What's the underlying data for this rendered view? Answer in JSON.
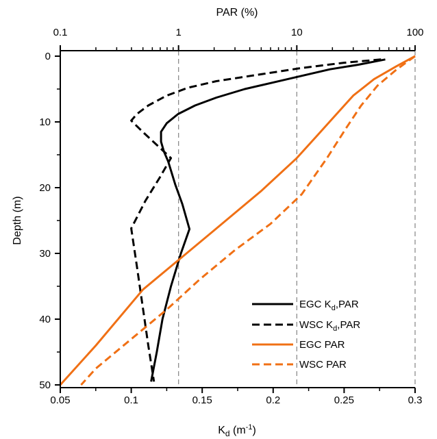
{
  "chart_data": {
    "type": "line",
    "top_axis": {
      "label": "PAR (%)",
      "scale": "log",
      "range": [
        0.1,
        100
      ],
      "ticks": [
        0.1,
        1,
        10,
        100
      ],
      "tick_labels": [
        "0.1",
        "1",
        "10",
        "100"
      ]
    },
    "bottom_axis": {
      "label_main": "K",
      "label_sub": "d",
      "label_rest": " (m",
      "label_sup": "-1",
      "label_end": ")",
      "range": [
        0.05,
        0.3
      ],
      "ticks": [
        0.05,
        0.1,
        0.15,
        0.2,
        0.25,
        0.3
      ],
      "tick_labels": [
        "0.05",
        "0.1",
        "0.15",
        "0.2",
        "0.25",
        "0.3"
      ]
    },
    "y_axis": {
      "label": "Depth (m)",
      "range": [
        0,
        50
      ],
      "inverted": true,
      "ticks": [
        0,
        10,
        20,
        30,
        40,
        50
      ],
      "tick_labels": [
        "0",
        "10",
        "20",
        "30",
        "40",
        "50"
      ]
    },
    "grid": "vertical dashed at PAR 1, 10, 100",
    "legend_position": "bottom-right",
    "series": [
      {
        "name": "EGC Kd,PAR",
        "legend_main": "EGC K",
        "legend_sub": "d",
        "legend_rest": ",PAR",
        "axis": "bottom",
        "color": "#000000",
        "dash": "solid",
        "points": [
          [
            0.279,
            0.5
          ],
          [
            0.26,
            1.3
          ],
          [
            0.24,
            2
          ],
          [
            0.22,
            3
          ],
          [
            0.2,
            4
          ],
          [
            0.18,
            5
          ],
          [
            0.16,
            6.3
          ],
          [
            0.145,
            7.5
          ],
          [
            0.133,
            8.8
          ],
          [
            0.125,
            10.2
          ],
          [
            0.121,
            11.5
          ],
          [
            0.121,
            13
          ],
          [
            0.123,
            14.5
          ],
          [
            0.126,
            16
          ],
          [
            0.131,
            19.5
          ],
          [
            0.136,
            22.5
          ],
          [
            0.141,
            26.3
          ],
          [
            0.135,
            30
          ],
          [
            0.128,
            35
          ],
          [
            0.122,
            40
          ],
          [
            0.118,
            45
          ],
          [
            0.114,
            49.5
          ]
        ]
      },
      {
        "name": "WSC Kd,PAR",
        "legend_main": "WSC K",
        "legend_sub": "d",
        "legend_rest": ",PAR",
        "axis": "bottom",
        "color": "#000000",
        "dash": "dashed",
        "points": [
          [
            0.276,
            0.5
          ],
          [
            0.25,
            1
          ],
          [
            0.22,
            1.8
          ],
          [
            0.19,
            2.8
          ],
          [
            0.16,
            3.8
          ],
          [
            0.14,
            4.8
          ],
          [
            0.125,
            6
          ],
          [
            0.112,
            7.5
          ],
          [
            0.104,
            8.8
          ],
          [
            0.1,
            9.8
          ],
          [
            0.108,
            11.5
          ],
          [
            0.118,
            13.5
          ],
          [
            0.128,
            15.5
          ],
          [
            0.12,
            18.5
          ],
          [
            0.11,
            22
          ],
          [
            0.1,
            26.2
          ],
          [
            0.104,
            32
          ],
          [
            0.108,
            38
          ],
          [
            0.112,
            44
          ],
          [
            0.116,
            49.5
          ]
        ]
      },
      {
        "name": "EGC PAR",
        "axis": "top",
        "color": "#f07015",
        "dash": "solid",
        "points": [
          [
            100,
            0
          ],
          [
            70,
            1.5
          ],
          [
            45,
            3.5
          ],
          [
            30,
            6
          ],
          [
            20,
            9.5
          ],
          [
            15,
            12
          ],
          [
            10,
            15.5
          ],
          [
            5,
            20.5
          ],
          [
            2,
            26.5
          ],
          [
            1,
            31
          ],
          [
            0.5,
            35.5
          ],
          [
            0.2,
            44
          ],
          [
            0.1,
            50
          ]
        ]
      },
      {
        "name": "WSC PAR",
        "axis": "top",
        "color": "#f07015",
        "dash": "dashed",
        "points": [
          [
            100,
            0
          ],
          [
            70,
            2
          ],
          [
            48,
            4.5
          ],
          [
            35,
            7.5
          ],
          [
            26,
            11
          ],
          [
            18,
            15.5
          ],
          [
            11,
            21
          ],
          [
            6,
            25.5
          ],
          [
            3,
            29.5
          ],
          [
            1.5,
            34
          ],
          [
            0.8,
            38.5
          ],
          [
            0.4,
            43
          ],
          [
            0.2,
            47.5
          ],
          [
            0.15,
            50
          ]
        ]
      }
    ]
  }
}
